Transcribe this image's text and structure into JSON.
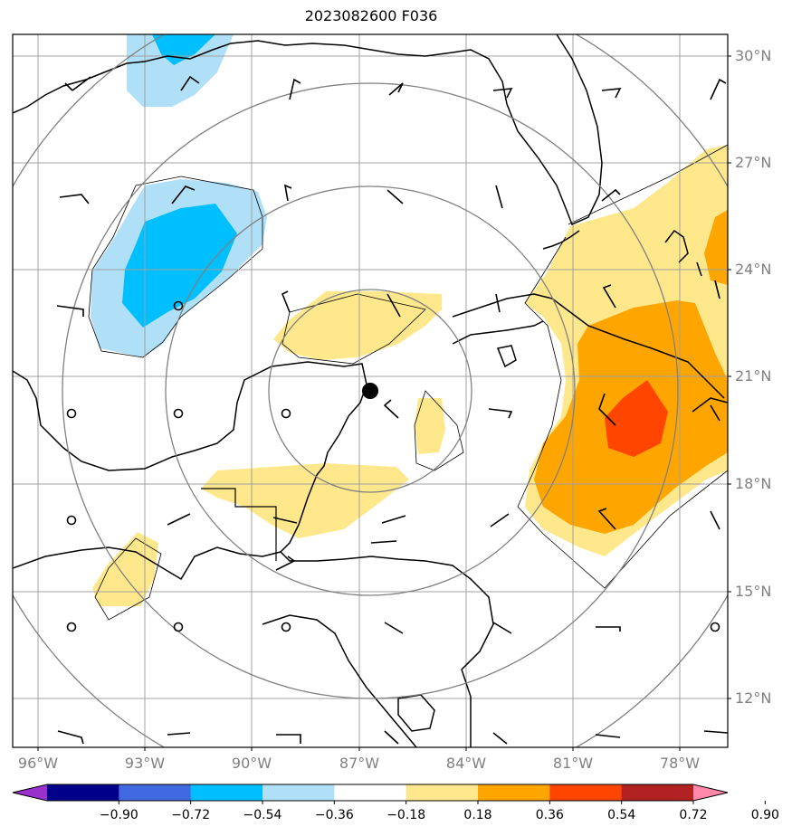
{
  "title": "2023082600 F036",
  "lat_labels": [
    "30°N",
    "27°N",
    "24°N",
    "21°N",
    "18°N",
    "15°N",
    "12°N"
  ],
  "lon_labels": [
    "96°W",
    "93°W",
    "90°W",
    "87°W",
    "84°W",
    "81°W",
    "78°W"
  ],
  "colorbar": {
    "tick_labels": [
      "−0.90",
      "−0.72",
      "−0.54",
      "−0.36",
      "−0.18",
      "0.18",
      "0.36",
      "0.54",
      "0.72",
      "0.90"
    ],
    "colors": [
      "#9932CC",
      "#00008B",
      "#4169E1",
      "#00BFFF",
      "#B0E0F8",
      "#FFFFFF",
      "#FFE88C",
      "#FFA500",
      "#FF4500",
      "#B22222",
      "#FF88AA"
    ]
  },
  "colors": {
    "grid": "#A0A0A0",
    "range_ring": "#808080",
    "coast": "#000000",
    "center_marker": "#000000"
  },
  "center_marker": {
    "lat": 20.6,
    "lon": -86.6
  }
}
